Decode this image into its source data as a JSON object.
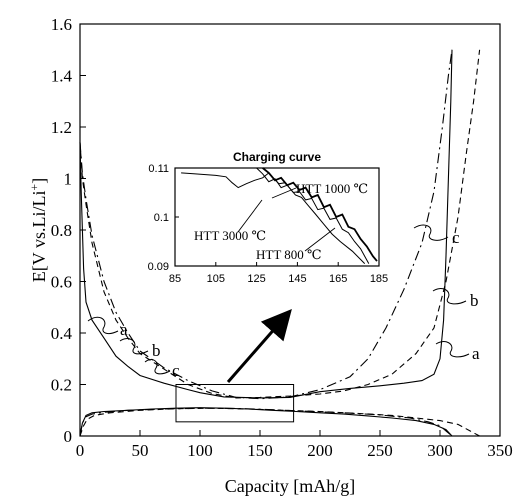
{
  "chart_data": {
    "type": "line",
    "title": "",
    "xlabel": "Capacity [mAh/g]",
    "ylabel": "E[V vs.Li/Li+]",
    "ylabel_parts": {
      "main": "E[V vs.Li/Li",
      "sup": "+",
      "close": "]"
    },
    "xlim": [
      0,
      350
    ],
    "ylim": [
      0,
      1.6
    ],
    "x_ticks": [
      "0",
      "50",
      "100",
      "150",
      "200",
      "250",
      "300",
      "350"
    ],
    "y_ticks": [
      "0",
      "0.2",
      "0.4",
      "0.6",
      "0.8",
      "1",
      "1.2",
      "1.4",
      "1.6"
    ],
    "grid": false,
    "series": [
      {
        "name": "a",
        "line_style": "solid",
        "discharge": [
          [
            0,
            1.14
          ],
          [
            1,
            0.95
          ],
          [
            3,
            0.65
          ],
          [
            5,
            0.52
          ],
          [
            10,
            0.45
          ],
          [
            20,
            0.38
          ],
          [
            30,
            0.31
          ],
          [
            40,
            0.27
          ],
          [
            50,
            0.235
          ],
          [
            70,
            0.205
          ],
          [
            90,
            0.18
          ],
          [
            100,
            0.168
          ],
          [
            120,
            0.152
          ],
          [
            150,
            0.148
          ],
          [
            175,
            0.15
          ],
          [
            200,
            0.172
          ],
          [
            225,
            0.185
          ],
          [
            250,
            0.195
          ],
          [
            270,
            0.205
          ],
          [
            285,
            0.215
          ],
          [
            295,
            0.24
          ],
          [
            300,
            0.3
          ],
          [
            303,
            0.45
          ],
          [
            305,
            0.7
          ],
          [
            307,
            1.0
          ],
          [
            309,
            1.3
          ],
          [
            310,
            1.5
          ]
        ],
        "charge": [
          [
            0,
            0.0
          ],
          [
            2,
            0.05
          ],
          [
            5,
            0.08
          ],
          [
            10,
            0.09
          ],
          [
            20,
            0.095
          ],
          [
            40,
            0.1
          ],
          [
            60,
            0.105
          ],
          [
            80,
            0.108
          ],
          [
            100,
            0.11
          ],
          [
            120,
            0.108
          ],
          [
            140,
            0.105
          ],
          [
            160,
            0.1
          ],
          [
            180,
            0.095
          ],
          [
            200,
            0.09
          ],
          [
            220,
            0.085
          ],
          [
            240,
            0.078
          ],
          [
            260,
            0.07
          ],
          [
            280,
            0.06
          ],
          [
            295,
            0.045
          ],
          [
            305,
            0.025
          ],
          [
            310,
            0.0
          ]
        ]
      },
      {
        "name": "b",
        "line_style": "dashed",
        "discharge": [
          [
            0,
            1.14
          ],
          [
            2,
            1.0
          ],
          [
            5,
            0.9
          ],
          [
            10,
            0.75
          ],
          [
            20,
            0.56
          ],
          [
            30,
            0.45
          ],
          [
            40,
            0.38
          ],
          [
            50,
            0.32
          ],
          [
            70,
            0.26
          ],
          [
            90,
            0.2
          ],
          [
            110,
            0.165
          ],
          [
            130,
            0.148
          ],
          [
            150,
            0.15
          ],
          [
            175,
            0.155
          ],
          [
            200,
            0.163
          ],
          [
            220,
            0.175
          ],
          [
            240,
            0.2
          ],
          [
            260,
            0.24
          ],
          [
            280,
            0.32
          ],
          [
            295,
            0.42
          ],
          [
            305,
            0.6
          ],
          [
            315,
            0.85
          ],
          [
            322,
            1.1
          ],
          [
            328,
            1.3
          ],
          [
            333,
            1.5
          ]
        ],
        "charge": [
          [
            0,
            0.0
          ],
          [
            3,
            0.04
          ],
          [
            6,
            0.065
          ],
          [
            12,
            0.08
          ],
          [
            25,
            0.09
          ],
          [
            50,
            0.1
          ],
          [
            80,
            0.106
          ],
          [
            110,
            0.108
          ],
          [
            140,
            0.105
          ],
          [
            170,
            0.1
          ],
          [
            200,
            0.095
          ],
          [
            230,
            0.088
          ],
          [
            260,
            0.08
          ],
          [
            280,
            0.07
          ],
          [
            300,
            0.06
          ],
          [
            315,
            0.045
          ],
          [
            325,
            0.02
          ],
          [
            333,
            0.0
          ]
        ]
      },
      {
        "name": "c",
        "line_style": "dash-dot",
        "discharge": [
          [
            0,
            1.14
          ],
          [
            2,
            1.02
          ],
          [
            5,
            0.92
          ],
          [
            10,
            0.78
          ],
          [
            20,
            0.6
          ],
          [
            30,
            0.48
          ],
          [
            40,
            0.4
          ],
          [
            50,
            0.33
          ],
          [
            70,
            0.265
          ],
          [
            90,
            0.215
          ],
          [
            110,
            0.175
          ],
          [
            130,
            0.15
          ],
          [
            150,
            0.145
          ],
          [
            175,
            0.152
          ],
          [
            200,
            0.18
          ],
          [
            225,
            0.23
          ],
          [
            240,
            0.3
          ],
          [
            255,
            0.42
          ],
          [
            270,
            0.57
          ],
          [
            285,
            0.75
          ],
          [
            295,
            0.95
          ],
          [
            302,
            1.2
          ],
          [
            307,
            1.4
          ],
          [
            310,
            1.5
          ]
        ],
        "charge": [
          [
            0,
            0.0
          ],
          [
            2,
            0.05
          ],
          [
            5,
            0.075
          ],
          [
            10,
            0.085
          ],
          [
            20,
            0.092
          ],
          [
            40,
            0.1
          ],
          [
            70,
            0.105
          ],
          [
            100,
            0.108
          ],
          [
            130,
            0.107
          ],
          [
            160,
            0.102
          ],
          [
            190,
            0.096
          ],
          [
            220,
            0.09
          ],
          [
            250,
            0.082
          ],
          [
            275,
            0.07
          ],
          [
            290,
            0.055
          ],
          [
            300,
            0.04
          ],
          [
            305,
            0.02
          ],
          [
            310,
            0.0
          ]
        ]
      }
    ],
    "highlight_box": {
      "x": [
        80,
        178
      ],
      "y": [
        0.055,
        0.2
      ]
    },
    "inset": {
      "title": "Charging curve",
      "xlim": [
        85,
        185
      ],
      "ylim": [
        0.09,
        0.11
      ],
      "x_ticks": [
        "85",
        "105",
        "125",
        "145",
        "165",
        "185"
      ],
      "y_ticks": [
        "0.09",
        "0.1",
        "0.11"
      ],
      "labels": [
        "HTT 1000 ℃",
        "HTT 3000 ℃",
        "HTT 800 ℃"
      ],
      "series": [
        {
          "name": "HTT 3000 ℃",
          "points": [
            [
              88,
              0.109
            ],
            [
              95,
              0.1088
            ],
            [
              105,
              0.1085
            ],
            [
              110,
              0.1082
            ],
            [
              113,
              0.107
            ],
            [
              116,
              0.106
            ],
            [
              120,
              0.1068
            ],
            [
              124,
              0.1075
            ],
            [
              128,
              0.108
            ],
            [
              131,
              0.109
            ],
            [
              133,
              0.108
            ],
            [
              136,
              0.1068
            ],
            [
              139,
              0.107
            ],
            [
              141,
              0.106
            ],
            [
              144,
              0.1045
            ],
            [
              147,
              0.104
            ],
            [
              150,
              0.1025
            ],
            [
              154,
              0.1005
            ],
            [
              158,
              0.0985
            ],
            [
              162,
              0.0965
            ],
            [
              166,
              0.095
            ],
            [
              172,
              0.093
            ],
            [
              178,
              0.0905
            ]
          ]
        },
        {
          "name": "HTT 1000 ℃",
          "points": [
            [
              128,
              0.11
            ],
            [
              131,
              0.109
            ],
            [
              134,
              0.1075
            ],
            [
              137,
              0.108
            ],
            [
              140,
              0.1065
            ],
            [
              143,
              0.107
            ],
            [
              146,
              0.1055
            ],
            [
              149,
              0.106
            ],
            [
              152,
              0.104
            ],
            [
              155,
              0.1045
            ],
            [
              158,
              0.102
            ],
            [
              161,
              0.1025
            ],
            [
              164,
              0.1
            ],
            [
              167,
              0.1005
            ],
            [
              170,
              0.098
            ],
            [
              173,
              0.0975
            ],
            [
              176,
              0.0955
            ],
            [
              179,
              0.094
            ],
            [
              182,
              0.092
            ],
            [
              184,
              0.091
            ]
          ]
        },
        {
          "name": "HTT 800 ℃",
          "points": [
            [
              125,
              0.11
            ],
            [
              128,
              0.1088
            ],
            [
              131,
              0.1072
            ],
            [
              134,
              0.1078
            ],
            [
              137,
              0.106
            ],
            [
              140,
              0.1065
            ],
            [
              143,
              0.105
            ],
            [
              146,
              0.1052
            ],
            [
              149,
              0.1035
            ],
            [
              152,
              0.1038
            ],
            [
              155,
              0.1015
            ],
            [
              158,
              0.1018
            ],
            [
              161,
              0.0995
            ],
            [
              164,
              0.0998
            ],
            [
              167,
              0.0975
            ],
            [
              170,
              0.0968
            ],
            [
              173,
              0.095
            ],
            [
              176,
              0.0935
            ],
            [
              178,
              0.092
            ],
            [
              180,
              0.0905
            ]
          ]
        }
      ]
    }
  }
}
